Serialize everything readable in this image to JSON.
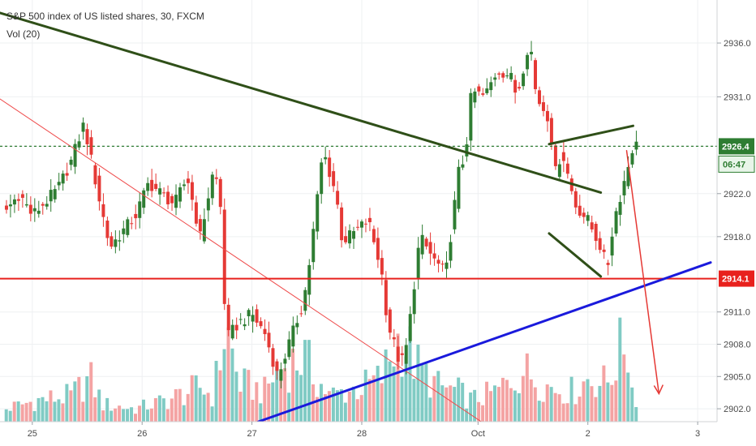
{
  "colors": {
    "up": "#2e7d32",
    "down": "#e53935",
    "vol_up": "#80cbc4",
    "vol_down": "#f4a3a3",
    "grid": "#eef0f2",
    "axis_text": "#4a4a4a",
    "hline": "#e8211d",
    "current_line": "#2e7d32",
    "support": "#1a1adc",
    "trend": "#2f4f18",
    "thin_red": "#ef4b4b",
    "badge_price_bg": "#2e7d32",
    "badge_timer_bg": "#e8f5e9",
    "badge_level_bg": "#e8211d"
  },
  "chart_data": {
    "type": "candlestick",
    "title": "S&P 500 index of US listed shares, 30, FXCM",
    "indicator_label": "Vol (20)",
    "x_ticks": [
      {
        "label": "25",
        "index": 4
      },
      {
        "label": "26",
        "index": 21
      },
      {
        "label": "27",
        "index": 38
      },
      {
        "label": "28",
        "index": 55
      },
      {
        "label": "Oct",
        "index": 73
      },
      {
        "label": "2",
        "index": 90
      },
      {
        "label": "3",
        "index": 107
      }
    ],
    "y_ticks": [
      2902.0,
      2905.0,
      2908.0,
      2911.0,
      2914.1,
      2918.0,
      2922.0,
      2926.4,
      2931.0,
      2936.0
    ],
    "y_tick_labels": [
      "2902.0",
      "2905.0",
      "2908.0",
      "2911.0",
      "2918.0",
      "2922.0",
      "2931.0",
      "2936.0"
    ],
    "ylim": [
      2900.8,
      2940.0
    ],
    "xlim": [
      -1,
      110
    ],
    "price_badge": {
      "price": "2926.4",
      "timer": "06:47"
    },
    "level_badge": {
      "price": "2914.1"
    },
    "horizontal_line": 2914.1,
    "current_price": 2926.4,
    "close_points": [
      [
        0,
        2920.5
      ],
      [
        2,
        2922.0
      ],
      [
        4,
        2920.0
      ],
      [
        6,
        2921.2
      ],
      [
        8,
        2922.5
      ],
      [
        10,
        2925.0
      ],
      [
        12,
        2928.5
      ],
      [
        14,
        2922.5
      ],
      [
        16,
        2917.0
      ],
      [
        18,
        2918.5
      ],
      [
        20,
        2920.0
      ],
      [
        22,
        2923.0
      ],
      [
        24,
        2922.0
      ],
      [
        26,
        2921.0
      ],
      [
        28,
        2923.5
      ],
      [
        30,
        2918.0
      ],
      [
        32,
        2924.0
      ],
      [
        33,
        2922.5
      ],
      [
        34,
        2908.5
      ],
      [
        36,
        2910.0
      ],
      [
        38,
        2910.8
      ],
      [
        40,
        2909.0
      ],
      [
        42,
        2905.0
      ],
      [
        44,
        2908.5
      ],
      [
        46,
        2912.0
      ],
      [
        47,
        2916.0
      ],
      [
        49,
        2926.0
      ],
      [
        51,
        2922.0
      ],
      [
        52,
        2917.5
      ],
      [
        54,
        2918.5
      ],
      [
        56,
        2919.5
      ],
      [
        58,
        2915.0
      ],
      [
        59,
        2910.0
      ],
      [
        61,
        2906.0
      ],
      [
        62,
        2908.0
      ],
      [
        64,
        2918.0
      ],
      [
        66,
        2916.0
      ],
      [
        68,
        2914.5
      ],
      [
        70,
        2924.0
      ],
      [
        71,
        2925.5
      ],
      [
        72,
        2931.5
      ],
      [
        74,
        2931.0
      ],
      [
        76,
        2933.5
      ],
      [
        78,
        2933.0
      ],
      [
        79,
        2931.0
      ],
      [
        81,
        2936.5
      ],
      [
        82,
        2931.0
      ],
      [
        84,
        2929.0
      ],
      [
        85,
        2924.0
      ],
      [
        86,
        2926.0
      ],
      [
        88,
        2921.0
      ],
      [
        90,
        2919.5
      ],
      [
        92,
        2917.0
      ],
      [
        93,
        2915.0
      ],
      [
        94,
        2919.5
      ],
      [
        96,
        2924.0
      ],
      [
        97,
        2926.5
      ]
    ],
    "volume_points": [
      [
        0,
        3
      ],
      [
        5,
        5
      ],
      [
        10,
        6
      ],
      [
        13,
        10
      ],
      [
        15,
        4
      ],
      [
        20,
        3
      ],
      [
        25,
        5
      ],
      [
        30,
        8
      ],
      [
        32,
        6
      ],
      [
        34,
        22
      ],
      [
        36,
        9
      ],
      [
        40,
        7
      ],
      [
        42,
        12
      ],
      [
        46,
        15
      ],
      [
        48,
        10
      ],
      [
        50,
        6
      ],
      [
        55,
        8
      ],
      [
        58,
        10
      ],
      [
        61,
        20
      ],
      [
        64,
        12
      ],
      [
        67,
        8
      ],
      [
        70,
        7
      ],
      [
        72,
        5
      ],
      [
        76,
        7
      ],
      [
        80,
        12
      ],
      [
        84,
        8
      ],
      [
        88,
        7
      ],
      [
        90,
        10
      ],
      [
        93,
        9
      ],
      [
        96,
        20
      ],
      [
        97,
        6
      ]
    ],
    "drawings": {
      "thick_descending_trendline": [
        [
          -1,
          2938.8
        ],
        [
          92,
          2922.1
        ]
      ],
      "thin_red_diagonal": [
        [
          -1,
          2930.8
        ],
        [
          74,
          2900.6
        ]
      ],
      "blue_support_line": [
        [
          39,
          2900.8
        ],
        [
          109,
          2915.6
        ]
      ],
      "green_upper_wedge": [
        [
          84,
          2926.6
        ],
        [
          97,
          2928.3
        ]
      ],
      "green_lower_wedge": [
        [
          84,
          2918.3
        ],
        [
          92,
          2914.3
        ]
      ],
      "red_arrow": [
        [
          96,
          2926.0
        ],
        [
          101,
          2903.4
        ]
      ]
    }
  }
}
